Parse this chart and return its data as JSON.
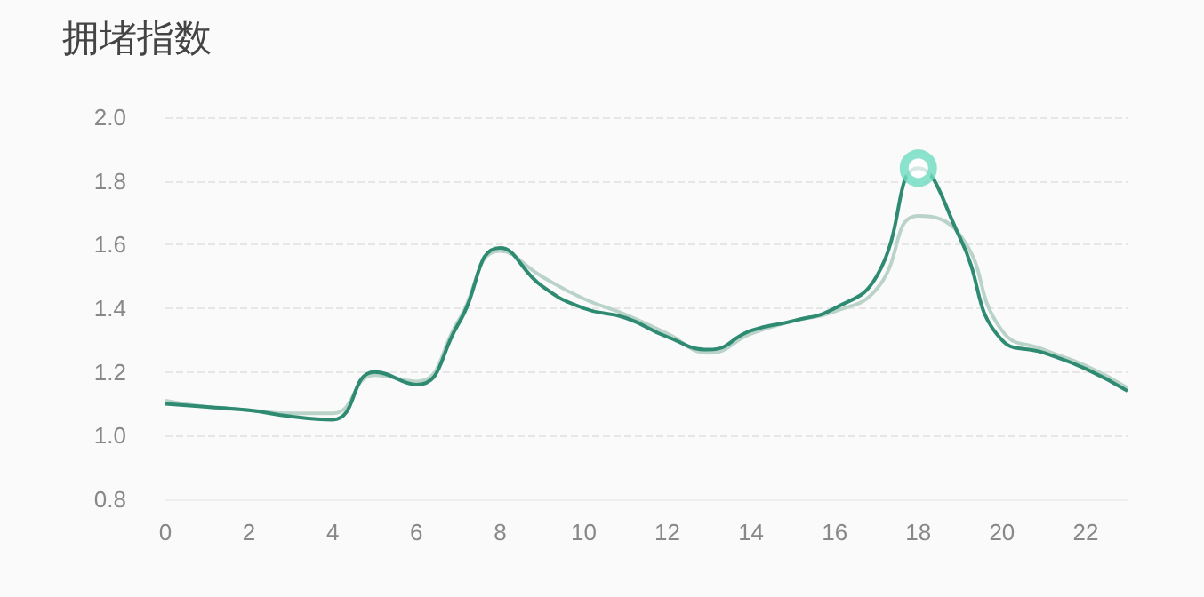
{
  "chart_data": {
    "type": "line",
    "title": "拥堵指数",
    "x": [
      0,
      1,
      2,
      3,
      4,
      5,
      6,
      7,
      8,
      9,
      10,
      11,
      12,
      13,
      14,
      15,
      16,
      17,
      18,
      19,
      20,
      21,
      22,
      23
    ],
    "series": [
      {
        "color": "#b9d3c9",
        "values": [
          1.11,
          1.09,
          1.08,
          1.07,
          1.07,
          1.19,
          1.17,
          1.36,
          1.58,
          1.5,
          1.43,
          1.38,
          1.32,
          1.26,
          1.32,
          1.36,
          1.39,
          1.46,
          1.69,
          1.63,
          1.33,
          1.27,
          1.22,
          1.15
        ]
      },
      {
        "color": "#2e8b72",
        "values": [
          1.1,
          1.09,
          1.08,
          1.06,
          1.05,
          1.2,
          1.16,
          1.35,
          1.59,
          1.47,
          1.4,
          1.37,
          1.31,
          1.27,
          1.33,
          1.36,
          1.4,
          1.5,
          1.84,
          1.62,
          1.3,
          1.26,
          1.21,
          1.14
        ]
      },
      {
        "type": "scatter",
        "color": "#6fdcc0",
        "x": [
          18
        ],
        "values": [
          1.84
        ],
        "marker": "circle"
      }
    ],
    "xlim": [
      0,
      23
    ],
    "xticks": [
      0,
      2,
      4,
      6,
      8,
      10,
      12,
      14,
      16,
      18,
      20,
      22
    ],
    "ylim": [
      0.8,
      2.0
    ],
    "yticks": [
      {
        "value": 0.8,
        "label": "0.8"
      },
      {
        "value": 1.0,
        "label": "1.0"
      },
      {
        "value": 1.2,
        "label": "1.2"
      },
      {
        "value": 1.4,
        "label": "1.4"
      },
      {
        "value": 1.6,
        "label": "1.6"
      },
      {
        "value": 1.8,
        "label": "1.8"
      },
      {
        "value": 2.0,
        "label": "2.0"
      }
    ],
    "grid": "y",
    "marker": "none",
    "line_style": "solid"
  }
}
